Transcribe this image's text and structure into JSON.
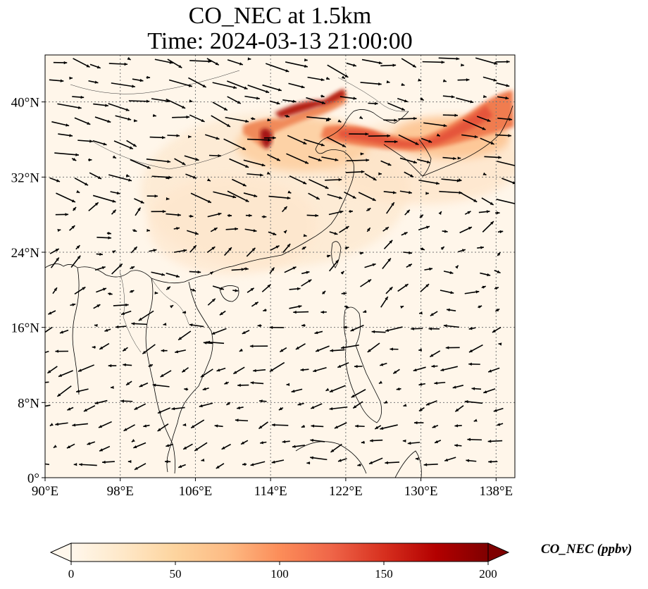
{
  "title": {
    "line1": "CO_NEC at 1.5km",
    "line2": "Time: 2024-03-13 21:00:00"
  },
  "map": {
    "projection": "PlateCarree",
    "lon_range": [
      90,
      140
    ],
    "lat_range": [
      0,
      45
    ],
    "gridlines": "dotted",
    "lon_ticks": [
      "90°E",
      "98°E",
      "106°E",
      "114°E",
      "122°E",
      "130°E",
      "138°E"
    ],
    "lat_ticks": [
      "0°",
      "8°N",
      "16°N",
      "24°N",
      "32°N",
      "40°N"
    ],
    "field": "CO_NEC",
    "colormap": "OrRd",
    "overlay": "wind vectors (quiver)"
  },
  "colorbar": {
    "label": "CO_NEC (ppbv)",
    "ticks": [
      "0",
      "50",
      "100",
      "150",
      "200"
    ],
    "range": [
      0,
      200
    ],
    "extend": "both",
    "colors": [
      "#fff7ec",
      "#fee8c8",
      "#fdd49e",
      "#fdbb84",
      "#fc8d59",
      "#ef6548",
      "#d7301f",
      "#b30000",
      "#7f0000"
    ]
  }
}
